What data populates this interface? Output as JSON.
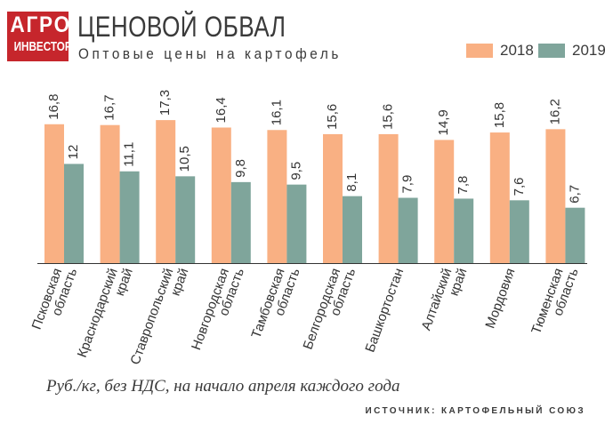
{
  "logo": {
    "line1": "АГРО",
    "line2": "ИНВЕСТОР"
  },
  "header": {
    "title": "ЦЕНОВОЙ ОБВАЛ",
    "subtitle": "Оптовые цены на картофель"
  },
  "footer": {
    "note": "Руб./кг, без НДС, на начало апреля каждого года",
    "source": "ИСТОЧНИК: КАРТОФЕЛЬНЫЙ СОЮЗ"
  },
  "colors": {
    "brand": "#c6262c",
    "series_2018": "#f9b083",
    "series_2019": "#7fa59b",
    "axis": "#333333"
  },
  "chart_data": {
    "type": "bar",
    "title": "ЦЕНОВОЙ ОБВАЛ",
    "subtitle": "Оптовые цены на картофель",
    "categories": [
      "Псковская область",
      "Краснодарский край",
      "Ставропольский край",
      "Новгородская область",
      "Тамбовская область",
      "Белгородская область",
      "Башкортостан",
      "Алтайский край",
      "Мордовия",
      "Тюменская область"
    ],
    "series": [
      {
        "name": "2018",
        "values": [
          16.8,
          16.7,
          17.3,
          16.4,
          16.1,
          15.6,
          15.6,
          14.9,
          15.8,
          16.2
        ],
        "labels": [
          "16,8",
          "16,7",
          "17,3",
          "16,4",
          "16,1",
          "15,6",
          "15,6",
          "14,9",
          "15,8",
          "16,2"
        ]
      },
      {
        "name": "2019",
        "values": [
          12,
          11.1,
          10.5,
          9.8,
          9.5,
          8.1,
          7.9,
          7.8,
          7.6,
          6.7
        ],
        "labels": [
          "12",
          "11,1",
          "10,5",
          "9,8",
          "9,5",
          "8,1",
          "7,9",
          "7,8",
          "7,6",
          "6,7"
        ]
      }
    ],
    "xlabel": "",
    "ylabel": "",
    "ylim": [
      0,
      17.3
    ],
    "grid": false,
    "legend": "top-right"
  }
}
